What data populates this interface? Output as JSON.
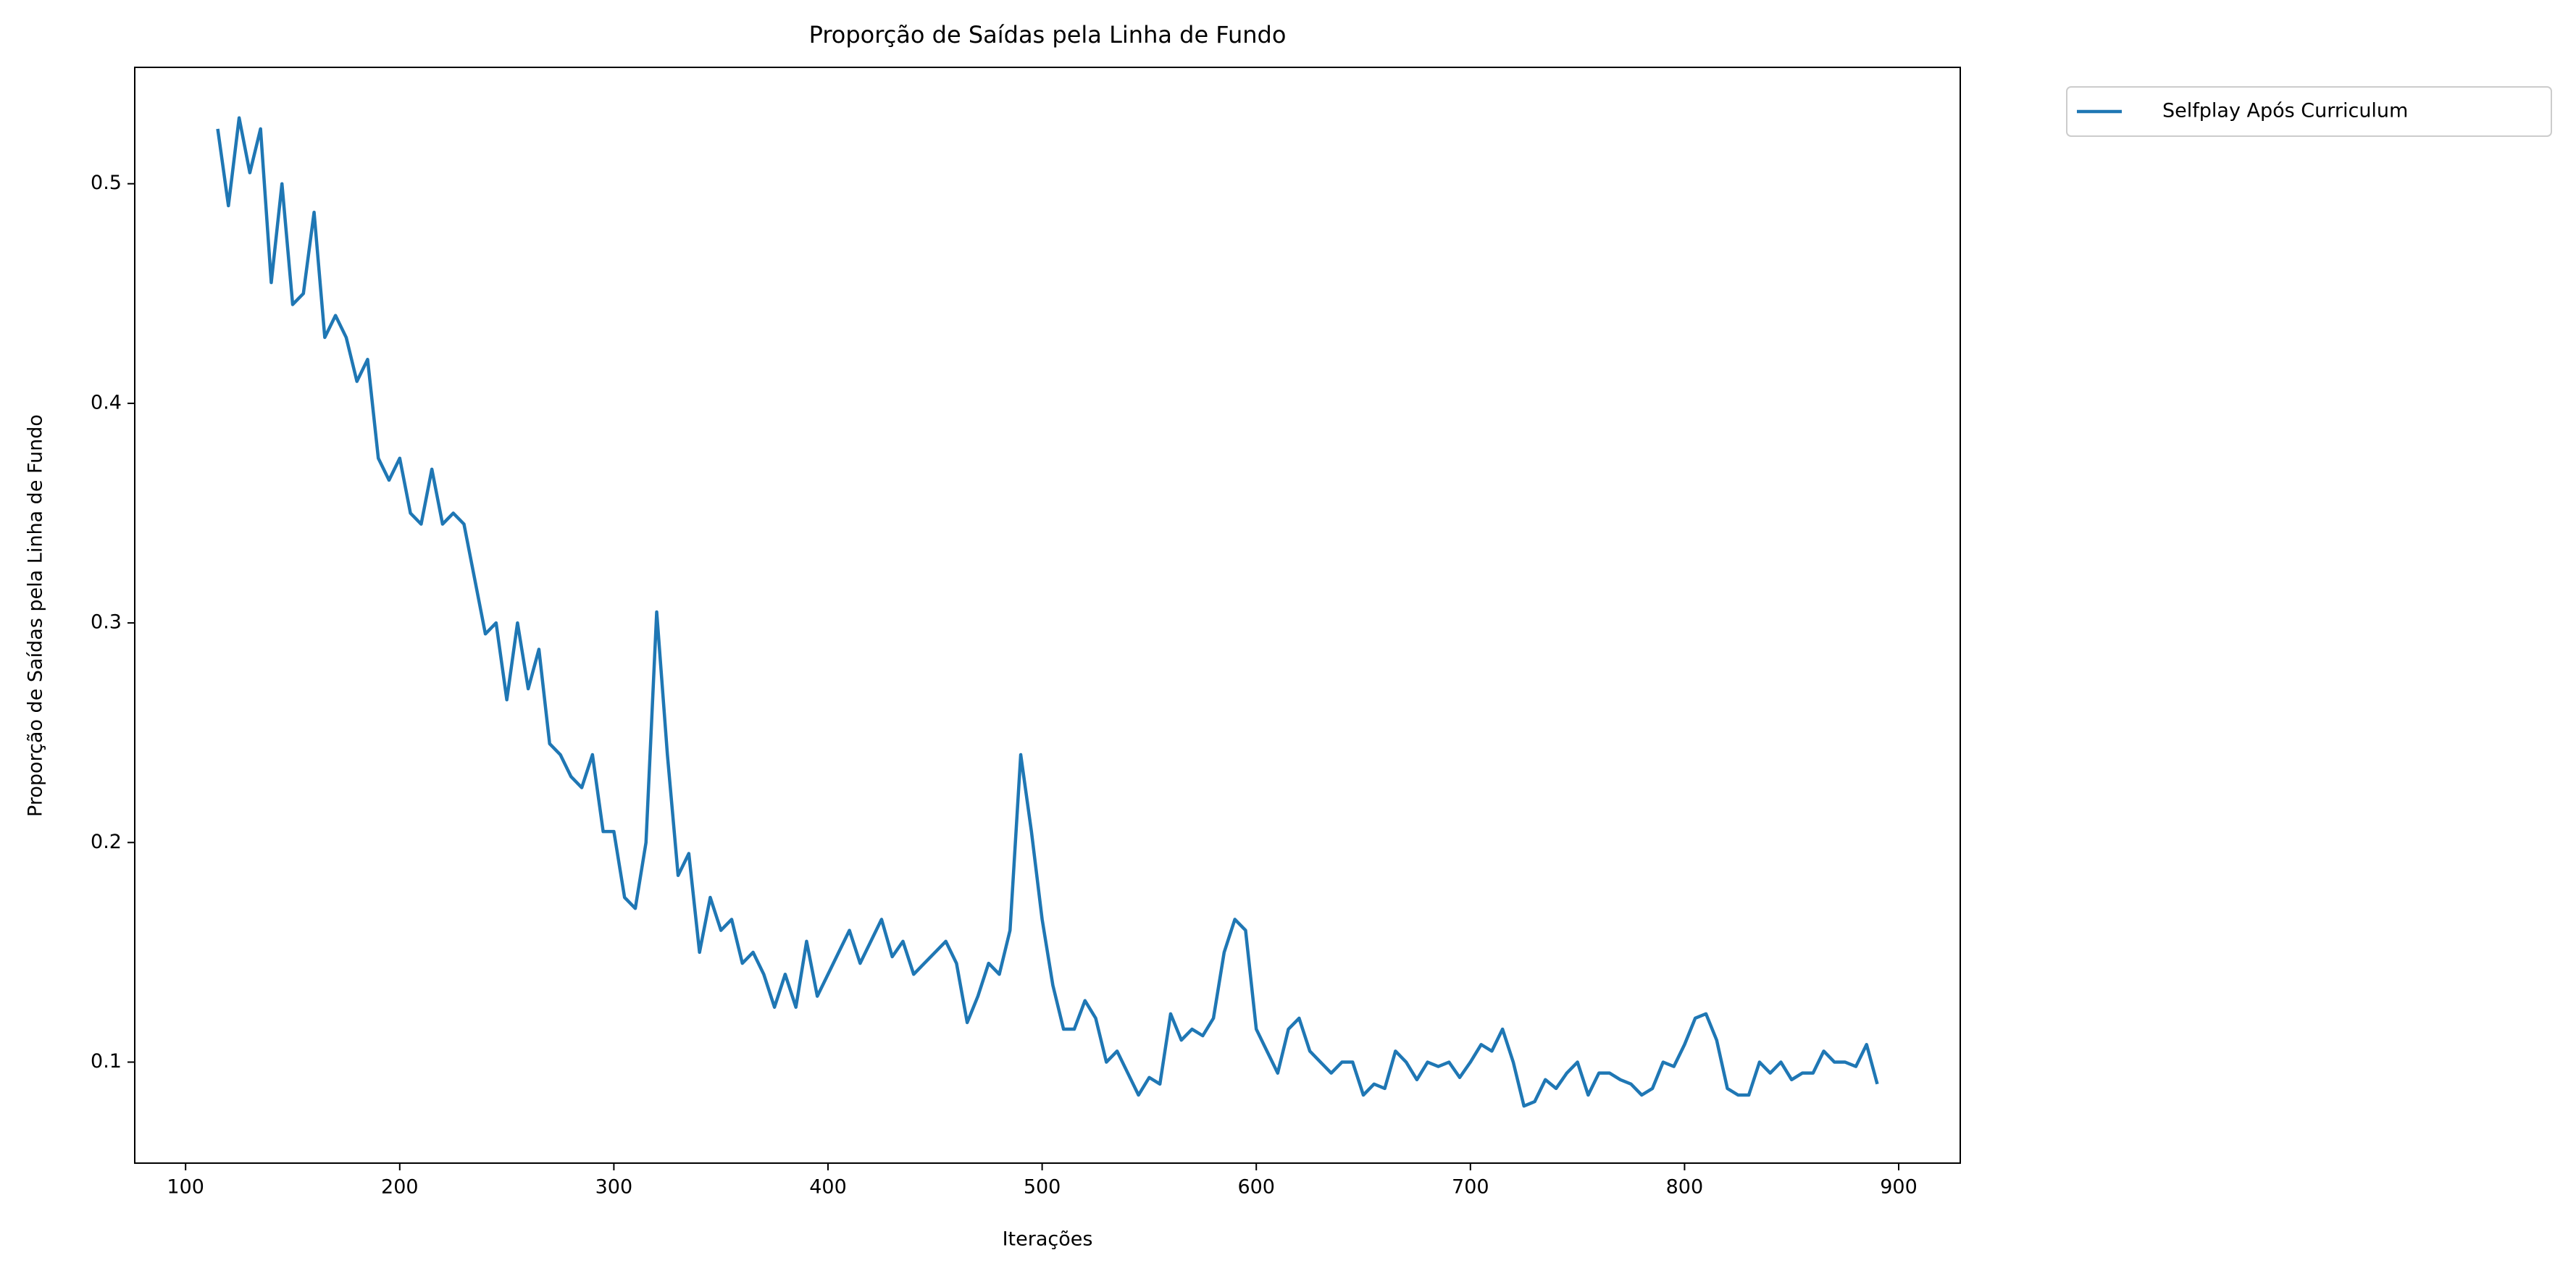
{
  "chart_data": {
    "type": "line",
    "title": "Proporção de Saídas pela Linha de Fundo",
    "xlabel": "Iterações",
    "ylabel": "Proporção de Saídas pela Linha de Fundo",
    "x": [
      115,
      120,
      125,
      130,
      135,
      140,
      145,
      150,
      155,
      160,
      165,
      170,
      175,
      180,
      185,
      190,
      195,
      200,
      205,
      210,
      215,
      220,
      225,
      230,
      235,
      240,
      245,
      250,
      255,
      260,
      265,
      270,
      275,
      280,
      285,
      290,
      295,
      300,
      305,
      310,
      315,
      320,
      325,
      330,
      335,
      340,
      345,
      350,
      355,
      360,
      365,
      370,
      375,
      380,
      385,
      390,
      395,
      400,
      405,
      410,
      415,
      420,
      425,
      430,
      435,
      440,
      445,
      450,
      455,
      460,
      465,
      470,
      475,
      480,
      485,
      490,
      495,
      500,
      505,
      510,
      515,
      520,
      525,
      530,
      535,
      540,
      545,
      550,
      555,
      560,
      565,
      570,
      575,
      580,
      585,
      590,
      595,
      600,
      605,
      610,
      615,
      620,
      625,
      630,
      635,
      640,
      645,
      650,
      655,
      660,
      665,
      670,
      675,
      680,
      685,
      690,
      695,
      700,
      705,
      710,
      715,
      720,
      725,
      730,
      735,
      740,
      745,
      750,
      755,
      760,
      765,
      770,
      775,
      780,
      785,
      790,
      795,
      800,
      805,
      810,
      815,
      820,
      825,
      830,
      835,
      840,
      845,
      850,
      855,
      860,
      865,
      870,
      875,
      880,
      885,
      890
    ],
    "series": [
      {
        "name": "Selfplay Após Curriculum",
        "color": "#1f77b4",
        "values": [
          0.525,
          0.49,
          0.53,
          0.505,
          0.525,
          0.455,
          0.5,
          0.445,
          0.45,
          0.487,
          0.43,
          0.44,
          0.43,
          0.41,
          0.42,
          0.375,
          0.365,
          0.375,
          0.35,
          0.345,
          0.37,
          0.345,
          0.35,
          0.345,
          0.32,
          0.295,
          0.3,
          0.265,
          0.3,
          0.27,
          0.288,
          0.245,
          0.24,
          0.23,
          0.225,
          0.24,
          0.205,
          0.205,
          0.175,
          0.17,
          0.2,
          0.305,
          0.24,
          0.185,
          0.195,
          0.15,
          0.175,
          0.16,
          0.165,
          0.145,
          0.15,
          0.14,
          0.125,
          0.14,
          0.125,
          0.155,
          0.13,
          0.14,
          0.15,
          0.16,
          0.145,
          0.155,
          0.165,
          0.148,
          0.155,
          0.14,
          0.145,
          0.15,
          0.155,
          0.145,
          0.118,
          0.13,
          0.145,
          0.14,
          0.16,
          0.24,
          0.205,
          0.165,
          0.135,
          0.115,
          0.115,
          0.128,
          0.12,
          0.1,
          0.105,
          0.095,
          0.085,
          0.093,
          0.09,
          0.122,
          0.11,
          0.115,
          0.112,
          0.12,
          0.15,
          0.165,
          0.16,
          0.115,
          0.105,
          0.095,
          0.115,
          0.12,
          0.105,
          0.1,
          0.095,
          0.1,
          0.1,
          0.085,
          0.09,
          0.088,
          0.105,
          0.1,
          0.092,
          0.1,
          0.098,
          0.1,
          0.093,
          0.1,
          0.108,
          0.105,
          0.115,
          0.1,
          0.08,
          0.082,
          0.092,
          0.088,
          0.095,
          0.1,
          0.085,
          0.095,
          0.095,
          0.092,
          0.09,
          0.085,
          0.088,
          0.1,
          0.098,
          0.108,
          0.12,
          0.122,
          0.11,
          0.088,
          0.085,
          0.085,
          0.1,
          0.095,
          0.1,
          0.092,
          0.095,
          0.095,
          0.105,
          0.1,
          0.1,
          0.098,
          0.108,
          0.09
        ]
      }
    ],
    "xlim": [
      76.25,
      928.75
    ],
    "ylim": [
      0.054,
      0.553
    ],
    "xticks": [
      100,
      200,
      300,
      400,
      500,
      600,
      700,
      800,
      900
    ],
    "yticks": [
      0.1,
      0.2,
      0.3,
      0.4,
      0.5
    ],
    "grid": false,
    "legend": "outside upper right"
  }
}
